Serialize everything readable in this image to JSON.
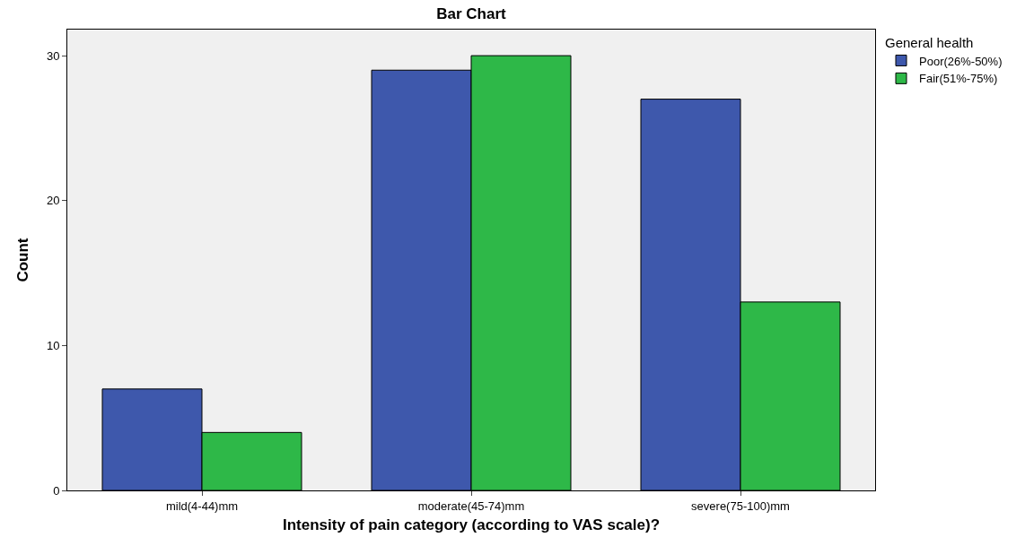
{
  "chart_data": {
    "type": "bar",
    "title": "Bar Chart",
    "xlabel": "Intensity of pain category (according to VAS scale)?",
    "ylabel": "Count",
    "legend_title": "General health",
    "categories": [
      "mild(4-44)mm",
      "moderate(45-74)mm",
      "severe(75-100)mm"
    ],
    "series": [
      {
        "name": "Poor(26%-50%)",
        "color": "#3e58ac",
        "values": [
          7,
          29,
          27
        ]
      },
      {
        "name": "Fair(51%-75%)",
        "color": "#2eb848",
        "values": [
          4,
          30,
          13
        ]
      }
    ],
    "ylim": [
      0,
      31.8
    ],
    "yticks": [
      0,
      10,
      20,
      30
    ],
    "grid": false,
    "legend": "top right"
  }
}
